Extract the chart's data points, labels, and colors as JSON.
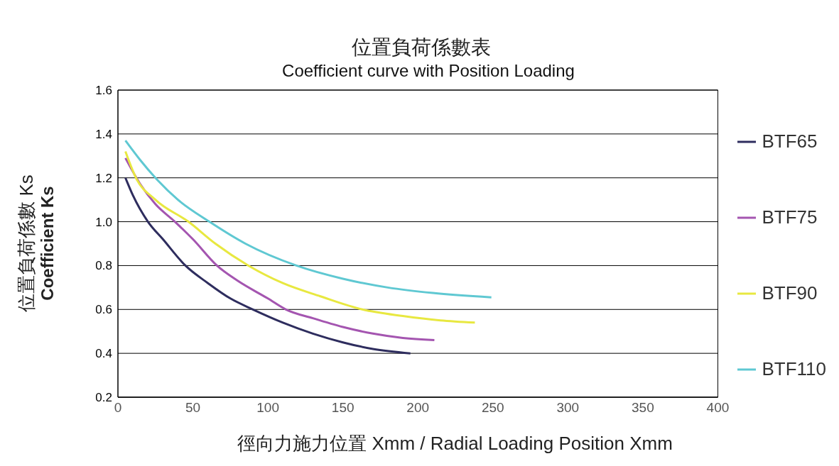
{
  "chart_data": {
    "type": "line",
    "title": "位置負荷係數表",
    "subtitle": "Coefficient curve with Position Loading",
    "xlabel": "徑向力施力位置 Xmm / Radial Loading Position Xmm",
    "ylabel": "位置負荷係數 Ks\nCoefficient Ks",
    "xlim": [
      0,
      400
    ],
    "xticks": [
      0,
      50,
      100,
      150,
      200,
      250,
      300,
      350,
      400
    ],
    "ylim": [
      0.2,
      1.6
    ],
    "yticks": [
      0.2,
      0.4,
      0.6,
      0.8,
      {
        "value": 1,
        "label": "1.0"
      },
      1.2,
      1.4,
      1.6
    ],
    "grid": "y",
    "legend": "right",
    "marker": "none",
    "line_style": "solid",
    "series": [
      {
        "name": "BTF65",
        "color": "#2e2d5e",
        "x": [
          5,
          10,
          20,
          30,
          45,
          60,
          75,
          90,
          110,
          130,
          150,
          170,
          195
        ],
        "values": [
          1.2,
          1.12,
          1.0,
          0.92,
          0.8,
          0.72,
          0.65,
          0.6,
          0.54,
          0.49,
          0.45,
          0.42,
          0.4
        ]
      },
      {
        "name": "BTF75",
        "color": "#a455b0",
        "x": [
          5,
          15,
          25,
          38,
          50,
          66,
          80,
          100,
          112,
          130,
          150,
          170,
          190,
          211
        ],
        "values": [
          1.29,
          1.17,
          1.08,
          1.0,
          0.92,
          0.8,
          0.73,
          0.65,
          0.6,
          0.56,
          0.52,
          0.49,
          0.47,
          0.46
        ]
      },
      {
        "name": "BTF90",
        "color": "#e8e840",
        "x": [
          5,
          12,
          25,
          47,
          65,
          87,
          110,
          135,
          163,
          190,
          215,
          238
        ],
        "values": [
          1.32,
          1.2,
          1.1,
          1.0,
          0.9,
          0.8,
          0.72,
          0.66,
          0.6,
          0.57,
          0.55,
          0.54
        ]
      },
      {
        "name": "BTF110",
        "color": "#5fc8d2",
        "x": [
          5,
          15,
          25,
          40,
          61,
          85,
          119,
          150,
          180,
          210,
          249
        ],
        "values": [
          1.37,
          1.28,
          1.2,
          1.1,
          1.0,
          0.9,
          0.8,
          0.74,
          0.7,
          0.675,
          0.655
        ]
      }
    ]
  }
}
